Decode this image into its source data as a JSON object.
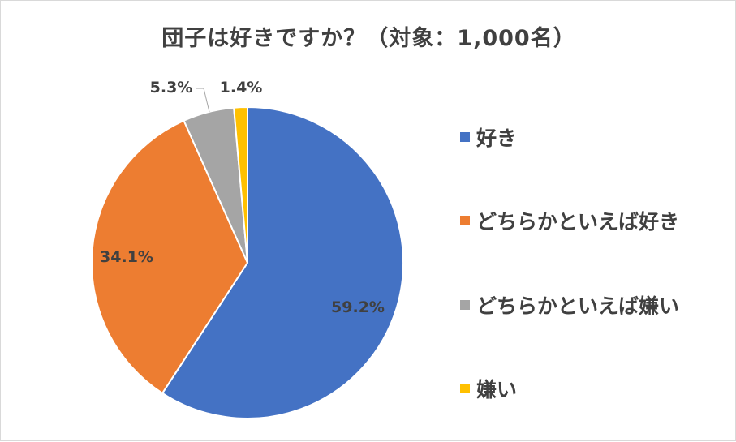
{
  "chart_data": {
    "type": "pie",
    "title": "団子は好きですか？（対象：1,000名）",
    "categories": [
      "好き",
      "どちらかといえば好き",
      "どちらかといえば嫌い",
      "嫌い"
    ],
    "values": [
      59.2,
      34.1,
      5.3,
      1.4
    ],
    "value_labels": [
      "59.2%",
      "34.1%",
      "5.3%",
      "1.4%"
    ],
    "colors": [
      "#4472C4",
      "#ED7D31",
      "#A5A5A5",
      "#FFC000"
    ],
    "legend_position": "right"
  }
}
